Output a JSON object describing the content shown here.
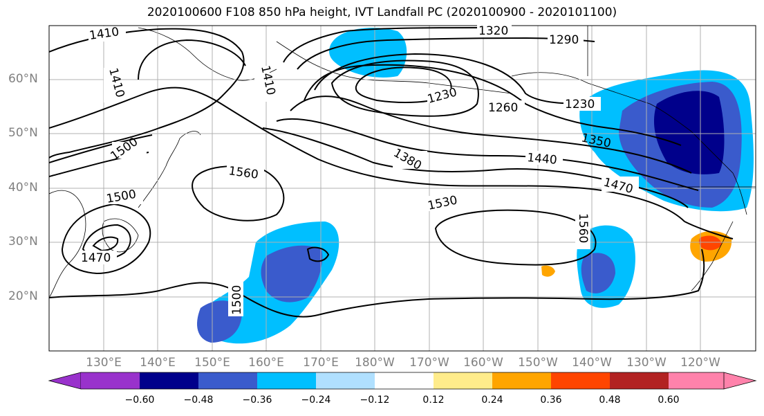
{
  "title": "2020100600 F108 850 hPa height, IVT Landfall PC (2020100900 - 2020101100)",
  "lat_labels": [
    "60°N",
    "50°N",
    "40°N",
    "30°N",
    "20°N"
  ],
  "lon_labels": [
    "130°E",
    "140°E",
    "150°E",
    "160°E",
    "170°E",
    "180°W",
    "170°W",
    "160°W",
    "150°W",
    "140°W",
    "130°W",
    "120°W"
  ],
  "contour_labels": [
    "1410",
    "1410",
    "1410",
    "1320",
    "1290",
    "1230",
    "1260",
    "1230",
    "1350",
    "1380",
    "1440",
    "1470",
    "1500",
    "1560",
    "1530",
    "1500",
    "1470",
    "1560",
    "1500"
  ],
  "colorbar": {
    "ticks": [
      "−0.60",
      "−0.48",
      "−0.36",
      "−0.24",
      "−0.12",
      "0.12",
      "0.24",
      "0.36",
      "0.48",
      "0.60"
    ],
    "colors": [
      "#9932cc",
      "#00008b",
      "#3a5bcc",
      "#00bfff",
      "#b0e0ff",
      "#ffffff",
      "#ffec8b",
      "#ffa500",
      "#ff4500",
      "#b22222",
      "#ff82ab"
    ]
  }
}
